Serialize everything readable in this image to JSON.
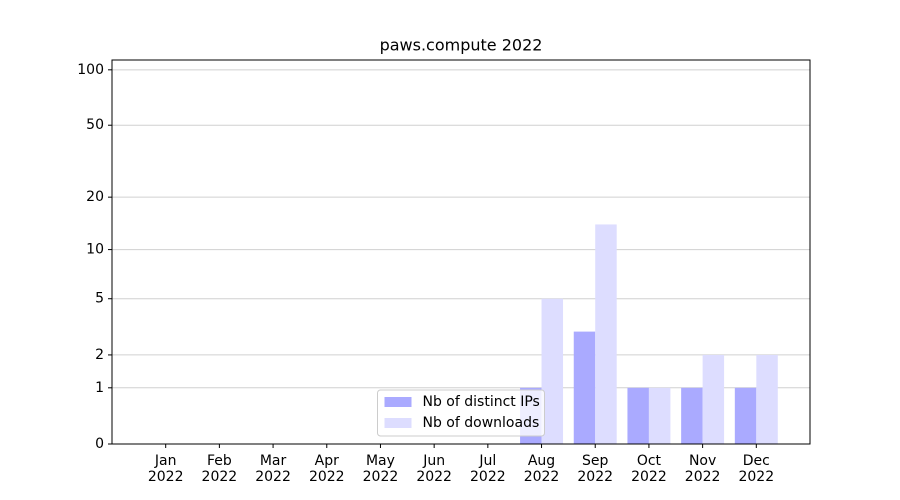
{
  "chart_data": {
    "type": "bar",
    "title": "paws.compute 2022",
    "categories": [
      "Jan\n2022",
      "Feb\n2022",
      "Mar\n2022",
      "Apr\n2022",
      "May\n2022",
      "Jun\n2022",
      "Jul\n2022",
      "Aug\n2022",
      "Sep\n2022",
      "Oct\n2022",
      "Nov\n2022",
      "Dec\n2022"
    ],
    "series": [
      {
        "name": "Nb of distinct IPs",
        "color": "#aaaaff",
        "values": [
          0,
          0,
          0,
          0,
          0,
          0,
          0,
          1,
          3,
          1,
          1,
          1
        ]
      },
      {
        "name": "Nb of downloads",
        "color": "#ddddff",
        "values": [
          0,
          0,
          0,
          0,
          0,
          0,
          0,
          5,
          14,
          1,
          2,
          2
        ]
      }
    ],
    "yscale": "log1p",
    "ylim": [
      0,
      113
    ],
    "yticks": [
      0,
      1,
      2,
      5,
      10,
      20,
      50,
      100
    ],
    "grid": true,
    "legend": "lower center"
  }
}
